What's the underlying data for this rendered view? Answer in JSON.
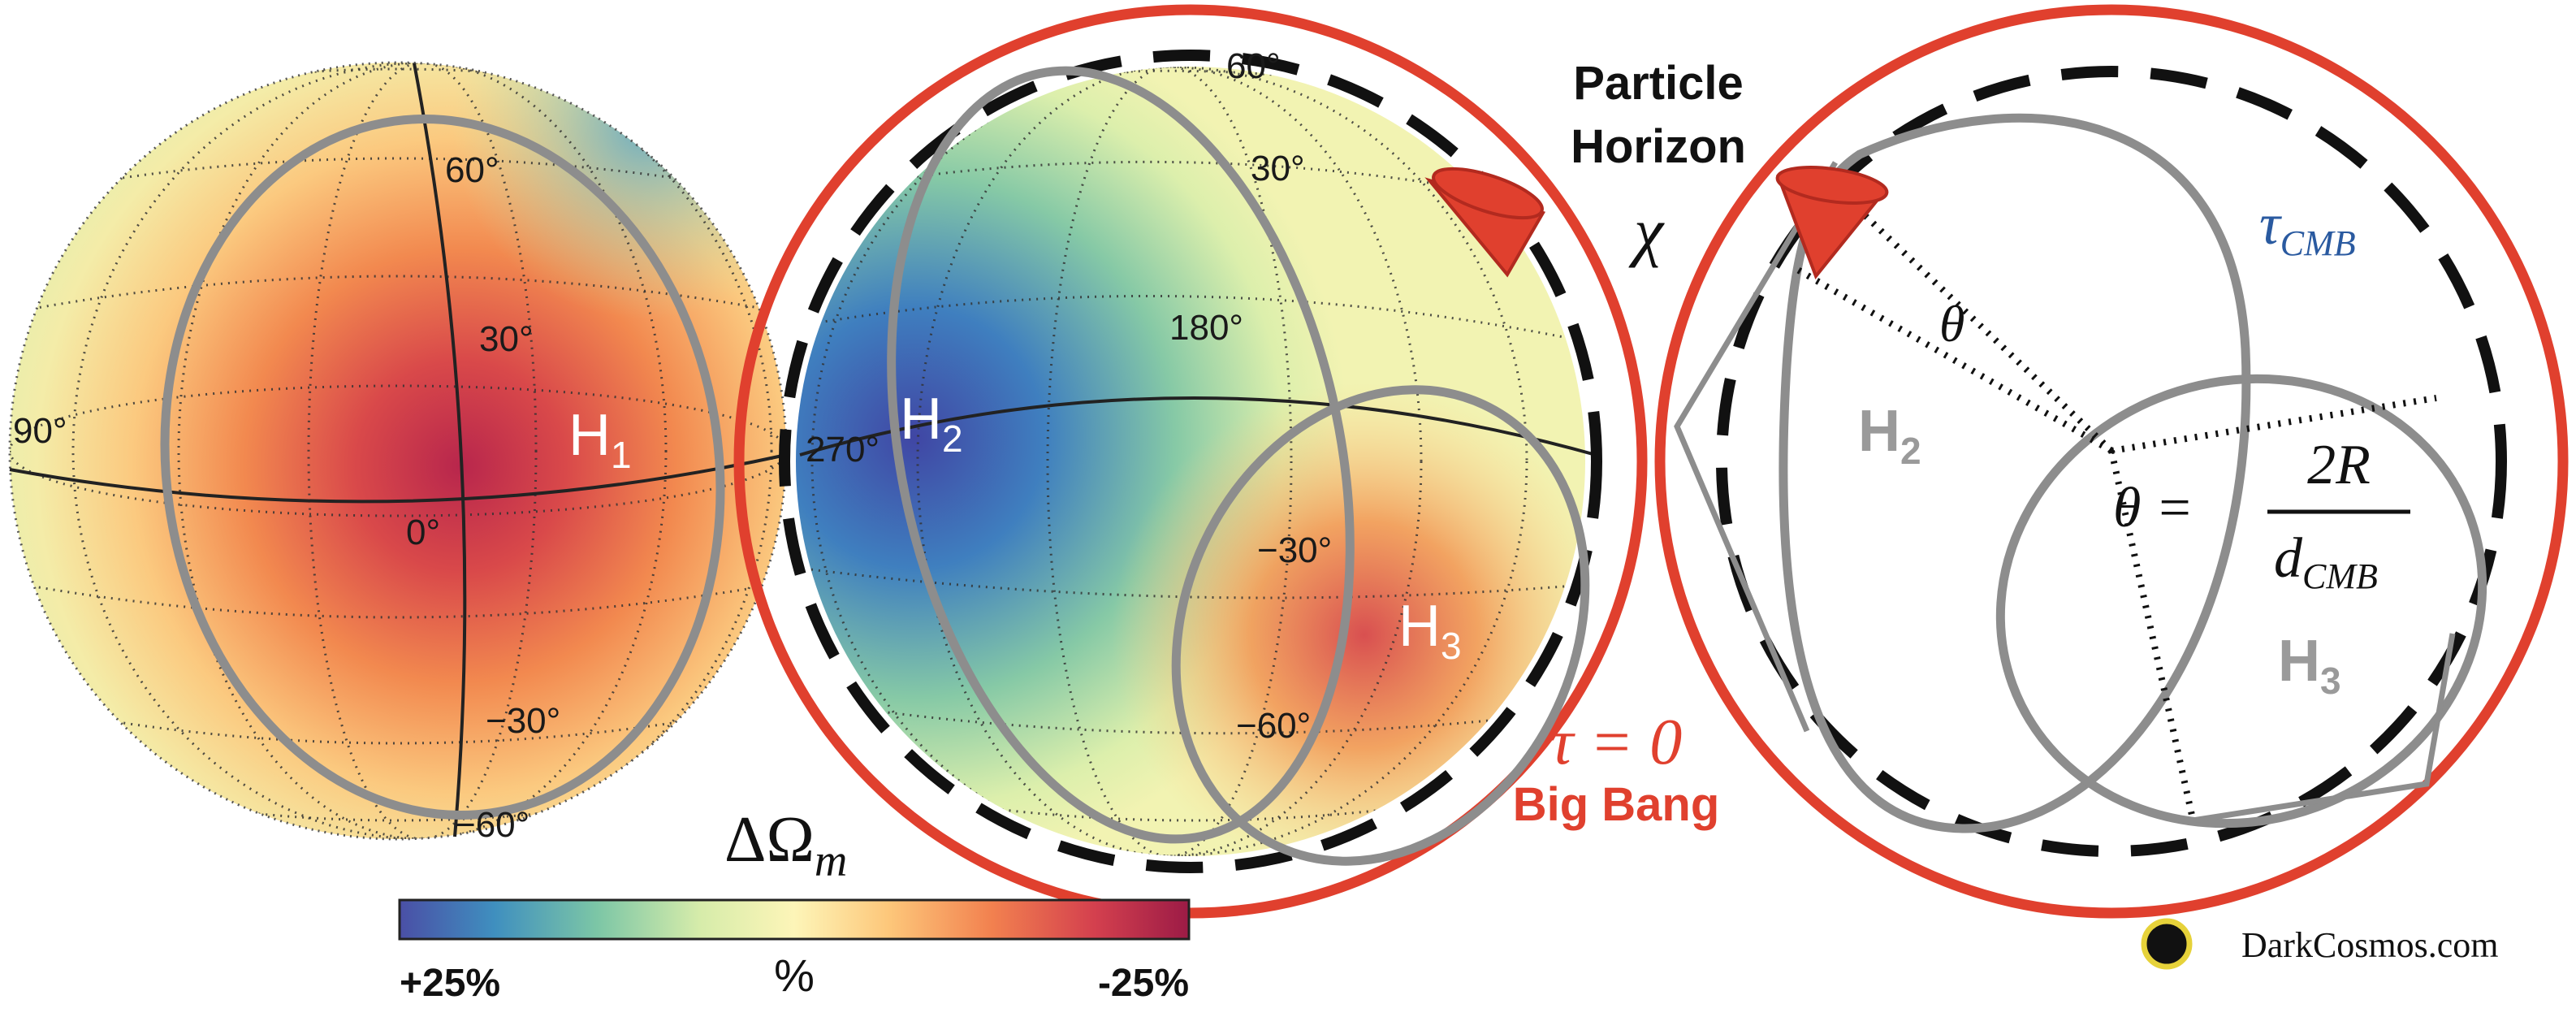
{
  "globe1": {
    "ticks": [
      "60°",
      "30°",
      "90°",
      "0°",
      "−30°",
      "−60°"
    ],
    "label": "H",
    "label_sub": "1"
  },
  "globe2": {
    "ticks": [
      "60°",
      "30°",
      "180°",
      "270°",
      "−30°",
      "−60°"
    ],
    "label": "H",
    "label_sub": "2",
    "label3": "H",
    "label3_sub": "3"
  },
  "particle_horizon": {
    "line1": "Particle",
    "line2": "Horizon",
    "symbol": "χ"
  },
  "big_bang": {
    "tau_eq": "τ = 0",
    "label": "Big Bang"
  },
  "diagram": {
    "tau_cmb": "τ",
    "tau_cmb_sub": "CMB",
    "theta": "θ",
    "eq_lhs": "θ =",
    "eq_num": "2R",
    "eq_den": "d",
    "eq_den_sub": "CMB",
    "h2": "H",
    "h2_sub": "2",
    "h3": "H",
    "h3_sub": "3"
  },
  "colorbar": {
    "title": "ΔΩ",
    "title_sub": "m",
    "left": "+25%",
    "mid": "%",
    "right": "-25%",
    "range_percent": [
      25,
      -25
    ],
    "colors": [
      "#4a4fa6",
      "#3f8fbf",
      "#7cc6a6",
      "#d6ecaa",
      "#fdf5b8",
      "#fdc77a",
      "#f2814f",
      "#d4404e",
      "#9c1b46"
    ]
  },
  "credit": {
    "text": "DarkCosmos.com"
  },
  "colors": {
    "accent_red": "#e0402e",
    "ring_gray": "#8d8d8d"
  }
}
